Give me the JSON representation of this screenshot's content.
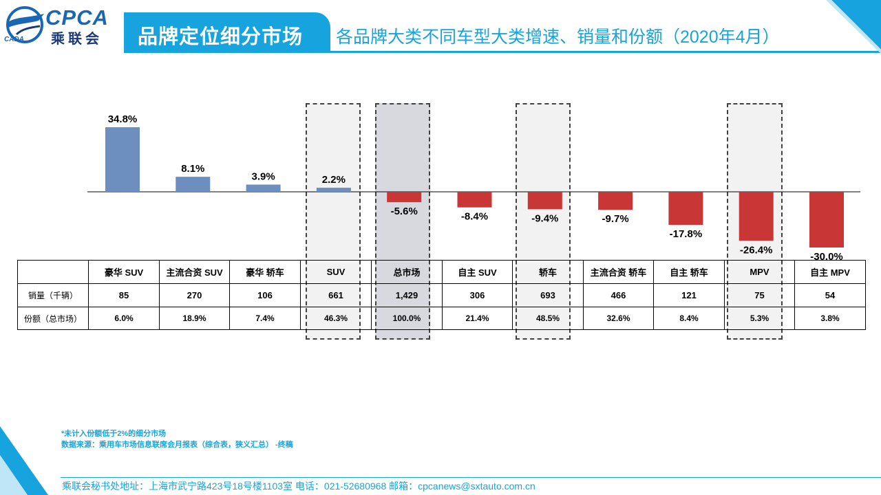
{
  "header": {
    "logo_text": "CPCA",
    "logo_cn": "乘联会",
    "logo_sub": "CADA",
    "title": "品牌定位细分市场",
    "subtitle": "各品牌大类不同车型大类增速、销量和份额（2020年4月）"
  },
  "colors": {
    "accent": "#17a4de",
    "positive_bar": "#6d8fbf",
    "negative_bar": "#c93636",
    "highlight_fill": "#f2f2f2",
    "highlight_dark_fill": "#d8d8df"
  },
  "table": {
    "row_labels": [
      "销量（千辆）",
      "份额（总市场）"
    ]
  },
  "chart_data": {
    "type": "bar",
    "categories": [
      "豪华 SUV",
      "主流合资 SUV",
      "豪华 轿车",
      "SUV",
      "总市场",
      "自主 SUV",
      "轿车",
      "主流合资 轿车",
      "自主 轿车",
      "MPV",
      "自主 MPV"
    ],
    "values": [
      34.8,
      8.1,
      3.9,
      2.2,
      -5.6,
      -8.4,
      -9.4,
      -9.7,
      -17.8,
      -26.4,
      -30.0
    ],
    "value_labels": [
      "34.8%",
      "8.1%",
      "3.9%",
      "2.2%",
      "-5.6%",
      "-8.4%",
      "-9.4%",
      "-9.7%",
      "-17.8%",
      "-26.4%",
      "-30.0%"
    ],
    "sales": [
      "85",
      "270",
      "106",
      "661",
      "1,429",
      "306",
      "693",
      "466",
      "121",
      "75",
      "54"
    ],
    "shares": [
      "6.0%",
      "18.9%",
      "7.4%",
      "46.3%",
      "100.0%",
      "21.4%",
      "48.5%",
      "32.6%",
      "8.4%",
      "5.3%",
      "3.8%"
    ],
    "highlighted_categories": [
      "SUV",
      "总市场",
      "轿车",
      "MPV"
    ],
    "highlight_dark_category": "总市场",
    "grid": false,
    "legend": "none"
  },
  "notes": {
    "line1": "*未计入份额低于2%的细分市场",
    "line2": "数据来源：乘用车市场信息联席会月报表（综合表，狭义汇总） -终稿"
  },
  "footer": {
    "text": "乘联会秘书处地址：上海市武宁路423号18号楼1103室  电话：021-52680968   邮箱：cpcanews@sxtauto.com.cn"
  }
}
